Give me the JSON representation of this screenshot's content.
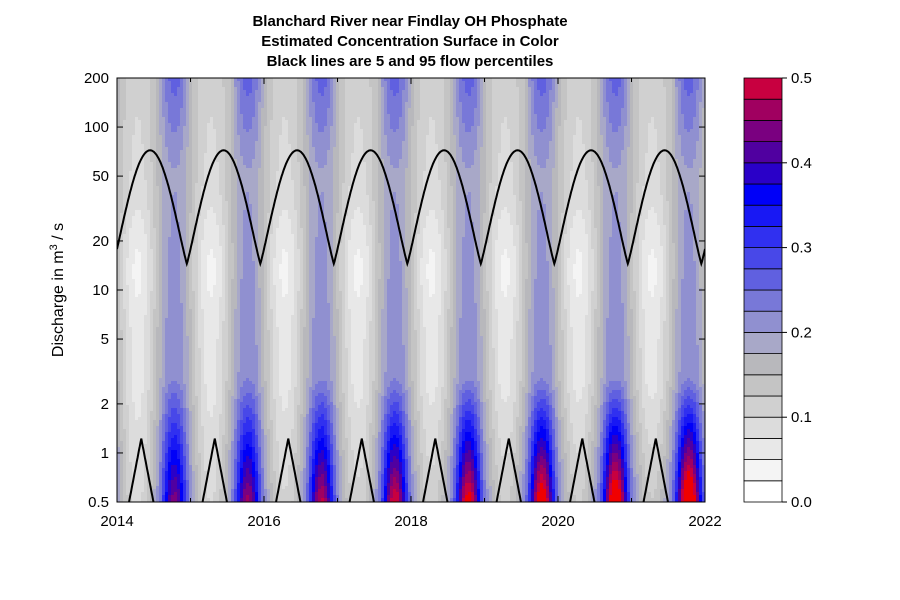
{
  "chart_data": {
    "type": "heatmap",
    "title_lines": [
      "Blanchard River near Findlay OH    Phosphate",
      "Estimated Concentration Surface in Color",
      "Black lines are 5 and 95 flow percentiles"
    ],
    "ylabel_prefix": "Discharge in m",
    "ylabel_sup": "3",
    "ylabel_suffix": " / s",
    "x_range": [
      2014,
      2022
    ],
    "y_range": [
      0.5,
      200
    ],
    "y_scale": "log",
    "x_ticks": [
      "2014",
      "2016",
      "2018",
      "2020",
      "2022"
    ],
    "x_tick_values": [
      2014,
      2016,
      2018,
      2020,
      2022
    ],
    "y_ticks": [
      "0.5",
      "1",
      "2",
      "5",
      "10",
      "20",
      "50",
      "100",
      "200"
    ],
    "y_tick_values": [
      0.5,
      1,
      2,
      5,
      10,
      20,
      50,
      100,
      200
    ],
    "colorbar": {
      "levels": [
        0.0,
        0.025,
        0.05,
        0.075,
        0.1,
        0.125,
        0.15,
        0.175,
        0.2,
        0.225,
        0.25,
        0.275,
        0.3,
        0.325,
        0.35,
        0.375,
        0.4,
        0.425,
        0.45,
        0.475,
        0.5
      ],
      "tick_labels": [
        "0.0",
        "0.1",
        "0.2",
        "0.3",
        "0.4",
        "0.5"
      ],
      "tick_values": [
        0.0,
        0.1,
        0.2,
        0.3,
        0.4,
        0.5
      ],
      "colors": [
        "#ffffff",
        "#f4f4f4",
        "#e8e8e8",
        "#dcdcdc",
        "#d0d0d0",
        "#c4c4c4",
        "#b8b8bc",
        "#a8a8c8",
        "#9090d0",
        "#7878d8",
        "#6060e0",
        "#4848e8",
        "#3030f0",
        "#1818f4",
        "#0000f8",
        "#2a00c8",
        "#5000a0",
        "#7a0080",
        "#a00060",
        "#c80040",
        "#f00000"
      ]
    },
    "flow_percentile_95": {
      "peak_years": [
        2014.45,
        2015.45,
        2016.45,
        2017.45,
        2018.45,
        2019.45,
        2020.45,
        2021.45
      ],
      "high": 72,
      "low": 14.5,
      "trough_years": [
        2014.78,
        2015.78,
        2016.78,
        2017.78,
        2018.78,
        2019.78,
        2020.78,
        2021.78
      ]
    },
    "flow_percentile_5": {
      "peak_years": [
        2014.33,
        2015.33,
        2016.33,
        2017.33,
        2018.33,
        2019.33,
        2020.33,
        2021.33
      ],
      "high": 1.25,
      "low": 0.5
    }
  }
}
